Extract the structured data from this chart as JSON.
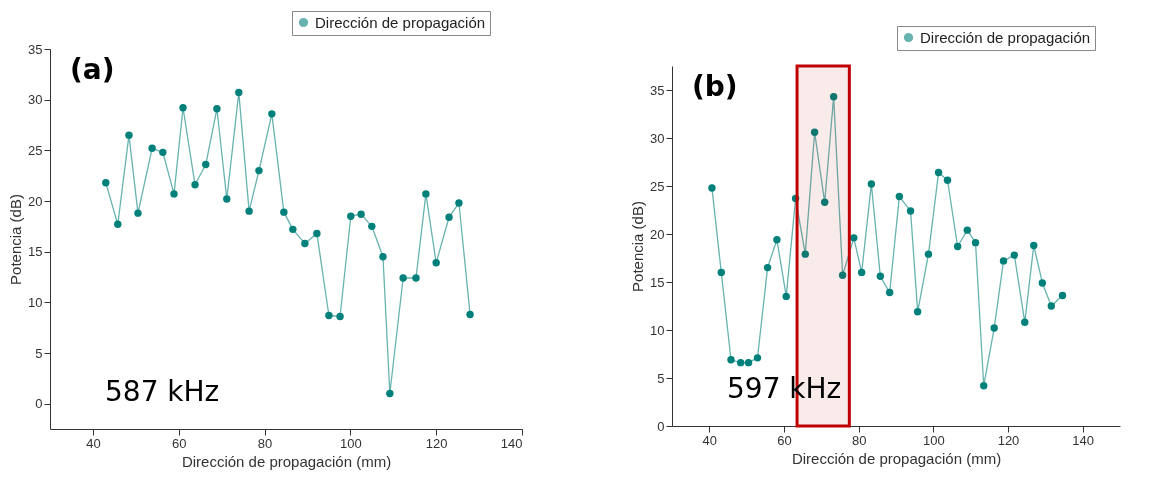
{
  "chart_data": [
    {
      "type": "line",
      "xlabel": "Dirección de propagación (mm)",
      "ylabel": "Potencia (dB)",
      "annotations": [
        "(a)",
        "587 kHz"
      ],
      "xlim": [
        30,
        140
      ],
      "xticks": [
        40,
        60,
        80,
        100,
        120,
        140
      ],
      "ylim": [
        -2.5,
        35
      ],
      "yticks": [
        0,
        5,
        10,
        15,
        20,
        25,
        30,
        35
      ],
      "grid": false,
      "legend": "top right",
      "marker": "circle",
      "line_style": "solid",
      "series": [
        {
          "name": "Dirección de propagación",
          "color": "#00807a",
          "x": [
            43.0,
            45.8,
            48.4,
            50.5,
            53.8,
            56.3,
            58.9,
            61.0,
            63.8,
            66.3,
            68.9,
            71.2,
            74.0,
            76.4,
            78.7,
            81.7,
            84.5,
            86.6,
            89.4,
            92.2,
            95.0,
            97.6,
            100.1,
            102.5,
            105.0,
            107.6,
            109.2,
            112.3,
            115.3,
            117.6,
            120.0,
            123.0,
            125.3,
            127.9
          ],
          "values": [
            21.8,
            17.7,
            26.5,
            18.8,
            25.2,
            24.8,
            20.7,
            29.2,
            21.6,
            23.6,
            29.1,
            20.2,
            30.7,
            19.0,
            23.0,
            28.6,
            18.9,
            17.2,
            15.8,
            16.8,
            8.7,
            8.6,
            18.5,
            18.7,
            17.5,
            14.5,
            1.0,
            12.4,
            12.4,
            20.7,
            13.9,
            18.4,
            19.8,
            8.8
          ]
        }
      ]
    },
    {
      "type": "line",
      "xlabel": "Dirección de propagación (mm)",
      "ylabel": "Potencia (dB)",
      "annotations": [
        "(b)",
        "597 kHz"
      ],
      "xlim": [
        30,
        150
      ],
      "xticks": [
        40,
        60,
        80,
        100,
        120,
        140
      ],
      "ylim": [
        0,
        37.5
      ],
      "yticks": [
        0,
        5,
        10,
        15,
        20,
        25,
        30,
        35
      ],
      "grid": false,
      "legend": "top right",
      "marker": "circle",
      "line_style": "solid",
      "bands": [
        {
          "axis": "x",
          "from": 63.5,
          "to": 77.5,
          "color": "#c00000"
        }
      ],
      "series": [
        {
          "name": "Dirección de propagación",
          "color": "#00807a",
          "x": [
            40.7,
            43.2,
            45.8,
            48.4,
            50.5,
            52.9,
            55.6,
            58.1,
            60.6,
            63.1,
            65.7,
            68.2,
            70.9,
            73.3,
            75.7,
            78.7,
            80.8,
            83.4,
            85.8,
            88.3,
            90.9,
            93.9,
            95.8,
            98.7,
            101.4,
            103.8,
            106.5,
            109.1,
            111.3,
            113.5,
            116.3,
            118.8,
            121.7,
            124.5,
            126.9,
            129.2,
            131.6,
            134.6
          ],
          "values": [
            24.8,
            16.0,
            6.9,
            6.6,
            6.6,
            7.1,
            16.5,
            19.4,
            13.5,
            23.7,
            17.9,
            30.6,
            23.3,
            34.3,
            15.7,
            19.6,
            16.0,
            25.2,
            15.6,
            13.9,
            23.9,
            22.4,
            11.9,
            17.9,
            26.4,
            25.6,
            18.7,
            20.4,
            19.1,
            4.2,
            10.2,
            17.2,
            17.8,
            10.8,
            18.8,
            14.9,
            12.5,
            13.6
          ]
        }
      ]
    }
  ]
}
